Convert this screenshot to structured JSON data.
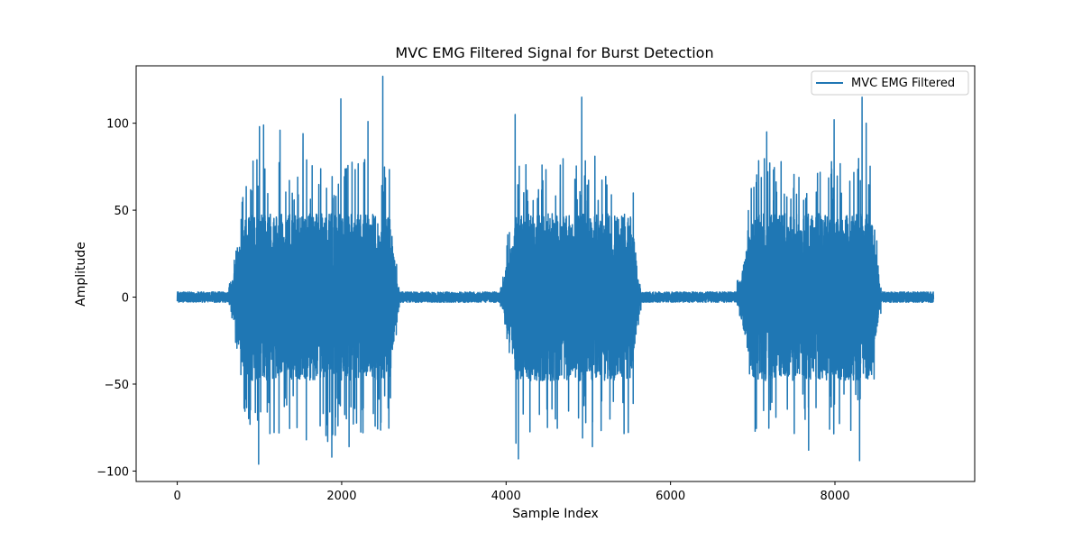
{
  "chart_data": {
    "type": "line",
    "title": "MVC EMG Filtered Signal for Burst Detection",
    "xlabel": "Sample Index",
    "ylabel": "Amplitude",
    "xlim": [
      -500,
      9700
    ],
    "ylim": [
      -106,
      133
    ],
    "xticks": [
      0,
      2000,
      4000,
      6000,
      8000
    ],
    "xtick_labels": [
      "0",
      "2000",
      "4000",
      "6000",
      "8000"
    ],
    "yticks": [
      -100,
      -50,
      0,
      50,
      100
    ],
    "ytick_labels": [
      "−100",
      "−50",
      "0",
      "50",
      "100"
    ],
    "grid": false,
    "legend_position": "top-right",
    "series": [
      {
        "name": "MVC EMG Filtered",
        "color": "#1f77b4",
        "n_samples": 9200,
        "baseline_noise_amplitude": 3,
        "bursts": [
          {
            "start": 780,
            "end": 2620,
            "max": 127,
            "min": -96
          },
          {
            "start": 4080,
            "end": 5560,
            "max": 115,
            "min": -93
          },
          {
            "start": 6960,
            "end": 8480,
            "max": 115,
            "min": -94
          }
        ],
        "peaks": [
          {
            "x": 990,
            "y": -96
          },
          {
            "x": 1000,
            "y": 98
          },
          {
            "x": 1050,
            "y": 99
          },
          {
            "x": 1250,
            "y": 96
          },
          {
            "x": 1530,
            "y": 94
          },
          {
            "x": 1570,
            "y": -82
          },
          {
            "x": 1830,
            "y": -83
          },
          {
            "x": 1880,
            "y": -92
          },
          {
            "x": 1990,
            "y": 114
          },
          {
            "x": 2090,
            "y": -86
          },
          {
            "x": 2320,
            "y": 101
          },
          {
            "x": 2500,
            "y": 127
          },
          {
            "x": 4110,
            "y": 105
          },
          {
            "x": 4120,
            "y": -84
          },
          {
            "x": 4150,
            "y": -93
          },
          {
            "x": 4920,
            "y": 115
          },
          {
            "x": 4930,
            "y": -81
          },
          {
            "x": 5050,
            "y": -86
          },
          {
            "x": 5080,
            "y": 81
          },
          {
            "x": 7170,
            "y": 95
          },
          {
            "x": 7680,
            "y": -88
          },
          {
            "x": 7990,
            "y": 102
          },
          {
            "x": 8330,
            "y": 115
          },
          {
            "x": 8300,
            "y": -94
          },
          {
            "x": 8380,
            "y": 100
          }
        ]
      }
    ]
  }
}
